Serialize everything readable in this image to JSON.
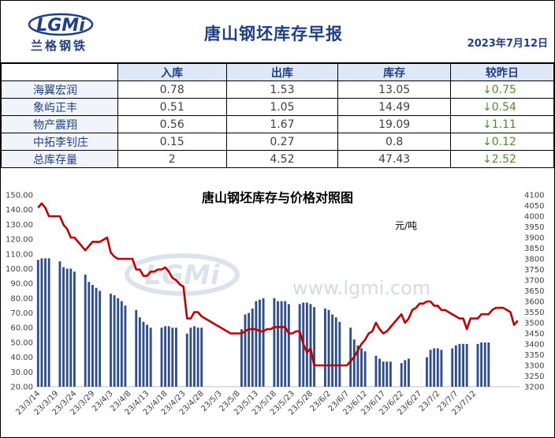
{
  "header": {
    "logo_text": "兰格钢铁",
    "logo_mark": "LGMi",
    "title": "唐山钢坯库存早报",
    "date": "2023年7月12日"
  },
  "table": {
    "columns": [
      "入库",
      "出库",
      "库存",
      "较昨日"
    ],
    "rows": [
      {
        "name": "海翼宏润",
        "in": "0.78",
        "out": "1.53",
        "stock": "13.05",
        "diff": "↓0.75"
      },
      {
        "name": "象屿正丰",
        "in": "0.51",
        "out": "1.05",
        "stock": "14.49",
        "diff": "↓0.54"
      },
      {
        "name": "物产震翔",
        "in": "0.56",
        "out": "1.67",
        "stock": "19.09",
        "diff": "↓1.11"
      },
      {
        "name": "中拓李钊庄",
        "in": "0.15",
        "out": "0.27",
        "stock": "0.8",
        "diff": "↓0.12"
      },
      {
        "name": "总库存量",
        "in": "2",
        "out": "4.52",
        "stock": "47.43",
        "diff": "↓2.52"
      }
    ]
  },
  "colors": {
    "accent": "#1f3f86",
    "bar": "#2e4e8e",
    "line": "#c00000",
    "down": "#4e8f28"
  },
  "chart_data": {
    "type": "bar",
    "title": "唐山钢坯库存与价格对照图",
    "unit_label": "元/吨",
    "watermark": "www.lgmi.com",
    "y_left": {
      "min": 20,
      "max": 150,
      "step": 10
    },
    "y_right": {
      "min": 3200,
      "max": 4100,
      "step": 50
    },
    "x_tick_labels": [
      "23/3/14",
      "23/3/19",
      "23/3/24",
      "23/3/29",
      "23/4/3",
      "23/4/8",
      "23/4/13",
      "23/4/18",
      "23/4/23",
      "23/4/28",
      "23/5/3",
      "23/5/8",
      "23/5/13",
      "23/5/18",
      "23/5/23",
      "23/5/28",
      "23/6/2",
      "23/6/7",
      "23/6/12",
      "23/6/17",
      "23/6/22",
      "23/6/27",
      "23/7/2",
      "23/7/7",
      "23/7/12"
    ],
    "x_start": "2023-03-14",
    "series": [
      {
        "name": "库存",
        "axis": "left",
        "values": [
          106,
          107,
          107,
          107,
          null,
          null,
          105,
          101,
          100,
          100,
          98,
          null,
          null,
          96,
          91,
          89,
          87,
          85,
          null,
          null,
          83,
          82,
          80,
          78,
          75,
          null,
          null,
          72,
          67,
          64,
          62,
          60,
          null,
          null,
          60,
          61,
          61,
          60,
          60,
          null,
          null,
          56,
          60,
          61,
          60,
          60,
          null,
          null,
          null,
          null,
          null,
          null,
          null,
          null,
          null,
          null,
          59,
          69,
          70,
          73,
          78,
          79,
          80,
          null,
          null,
          80,
          78,
          78,
          78,
          76,
          null,
          null,
          76,
          77,
          77,
          76,
          74,
          null,
          null,
          73,
          72,
          69,
          67,
          64,
          null,
          null,
          60,
          52,
          48,
          46,
          44,
          null,
          null,
          41,
          39,
          37,
          37,
          37,
          null,
          null,
          36,
          38,
          39,
          null,
          null,
          null,
          null,
          40,
          45,
          46,
          46,
          45,
          null,
          null,
          46,
          48,
          49,
          49,
          49,
          null,
          null,
          49,
          50,
          50,
          50
        ]
      },
      {
        "name": "价格",
        "axis": "right",
        "values": [
          4040,
          4060,
          4040,
          4000,
          4000,
          4000,
          4000,
          3960,
          3940,
          3900,
          3900,
          3880,
          3860,
          3840,
          3860,
          3880,
          3880,
          3880,
          3890,
          3900,
          3830,
          3810,
          3800,
          3800,
          3800,
          3800,
          3800,
          3750,
          3750,
          3720,
          3720,
          3740,
          3740,
          3750,
          3750,
          3760,
          3740,
          3710,
          3700,
          3680,
          3670,
          3520,
          3520,
          3550,
          3550,
          3530,
          3520,
          3510,
          3500,
          3490,
          3480,
          3470,
          3460,
          3450,
          3450,
          3450,
          3450,
          3460,
          3470,
          3470,
          3470,
          3460,
          3460,
          3470,
          3470,
          3480,
          3480,
          3480,
          3480,
          3450,
          3450,
          3460,
          3460,
          3400,
          3360,
          3380,
          3300,
          3300,
          3300,
          3300,
          3300,
          3300,
          3300,
          3300,
          3300,
          3300,
          3320,
          3340,
          3370,
          3400,
          3420,
          3450,
          3460,
          3500,
          3470,
          3450,
          3460,
          3480,
          3500,
          3520,
          3540,
          3500,
          3520,
          3560,
          3570,
          3590,
          3590,
          3600,
          3600,
          3580,
          3580,
          3560,
          3560,
          3550,
          3540,
          3530,
          3520,
          3520,
          3470,
          3520,
          3520,
          3520,
          3540,
          3540,
          3540,
          3560,
          3570,
          3570,
          3570,
          3560,
          3550,
          3490,
          3510
        ]
      }
    ]
  }
}
